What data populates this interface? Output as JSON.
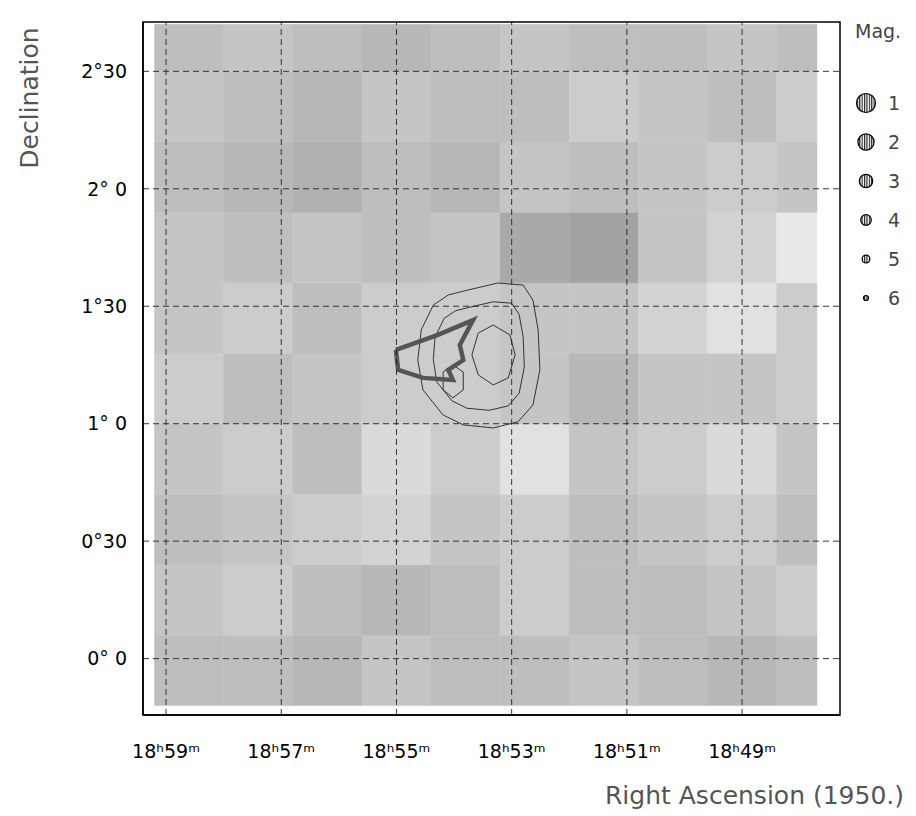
{
  "chart_data": {
    "type": "contour_map",
    "xlabel": "Right Ascension (1950.)",
    "ylabel": "Declination",
    "xlim": [
      1139.4,
      1127.3
    ],
    "ylim": [
      -0.24,
      2.71
    ],
    "xticks": [
      {
        "value": 1139,
        "label": "18ʰ59ᵐ"
      },
      {
        "value": 1137,
        "label": "18ʰ57ᵐ"
      },
      {
        "value": 1135,
        "label": "18ʰ55ᵐ"
      },
      {
        "value": 1133,
        "label": "18ʰ53ᵐ"
      },
      {
        "value": 1131,
        "label": "18ʰ51ᵐ"
      },
      {
        "value": 1129,
        "label": "18ʰ49ᵐ"
      }
    ],
    "yticks": [
      {
        "value": 0,
        "label": "0° 0"
      },
      {
        "value": 0.5,
        "label": "0°30"
      },
      {
        "value": 1,
        "label": "1° 0"
      },
      {
        "value": 1.5,
        "label": "1°30"
      },
      {
        "value": 2,
        "label": "2° 0"
      },
      {
        "value": 2.5,
        "label": "2°30"
      }
    ],
    "grid": true,
    "legend": "right",
    "magnitude_legend": {
      "title": "Mag.",
      "values": [
        1,
        2,
        3,
        4,
        5,
        6
      ]
    },
    "cells": {
      "x_edges": [
        1139.2,
        1138.0,
        1136.8,
        1135.6,
        1134.4,
        1133.2,
        1132.0,
        1130.8,
        1129.6,
        1128.4,
        1127.7
      ],
      "y_edges": [
        -0.2,
        0.1,
        0.4,
        0.7,
        1.0,
        1.3,
        1.6,
        1.9,
        2.2,
        2.5,
        2.7
      ],
      "values": [
        [
          0.5,
          0.5,
          0.45,
          0.55,
          0.5,
          0.5,
          0.55,
          0.5,
          0.45,
          0.5
        ],
        [
          0.55,
          0.6,
          0.5,
          0.45,
          0.5,
          0.6,
          0.5,
          0.5,
          0.55,
          0.6
        ],
        [
          0.5,
          0.55,
          0.6,
          0.65,
          0.55,
          0.6,
          0.5,
          0.55,
          0.6,
          0.5
        ],
        [
          0.55,
          0.6,
          0.5,
          0.7,
          0.6,
          0.75,
          0.55,
          0.6,
          0.7,
          0.55
        ],
        [
          0.6,
          0.5,
          0.55,
          0.6,
          0.6,
          0.55,
          0.45,
          0.55,
          0.55,
          0.6
        ],
        [
          0.55,
          0.6,
          0.5,
          0.6,
          0.6,
          0.55,
          0.55,
          0.65,
          0.75,
          0.6
        ],
        [
          0.55,
          0.5,
          0.55,
          0.5,
          0.55,
          0.35,
          0.3,
          0.55,
          0.65,
          0.8
        ],
        [
          0.5,
          0.45,
          0.4,
          0.5,
          0.45,
          0.55,
          0.5,
          0.55,
          0.6,
          0.55
        ],
        [
          0.55,
          0.5,
          0.45,
          0.55,
          0.5,
          0.5,
          0.6,
          0.55,
          0.5,
          0.6
        ],
        [
          0.5,
          0.55,
          0.5,
          0.45,
          0.5,
          0.55,
          0.5,
          0.5,
          0.55,
          0.5
        ]
      ]
    },
    "series": [
      {
        "color": "#222222",
        "line_style": "solid",
        "values": [
          [
            1133.76,
            1.569
          ],
          [
            1133.24,
            1.599
          ],
          [
            1132.8,
            1.59
          ],
          [
            1132.63,
            1.526
          ],
          [
            1132.54,
            1.399
          ],
          [
            1132.51,
            1.229
          ],
          [
            1132.63,
            1.08
          ],
          [
            1132.89,
            1.008
          ],
          [
            1133.32,
            0.982
          ],
          [
            1133.84,
            0.995
          ],
          [
            1134.19,
            1.037
          ],
          [
            1134.54,
            1.144
          ],
          [
            1134.63,
            1.271
          ],
          [
            1134.57,
            1.399
          ],
          [
            1134.36,
            1.505
          ],
          [
            1134.1,
            1.548
          ],
          [
            1133.76,
            1.569
          ]
        ]
      },
      {
        "color": "#222222",
        "line_style": "solid",
        "values": [
          [
            1133.71,
            1.497
          ],
          [
            1133.32,
            1.519
          ],
          [
            1133.0,
            1.513
          ],
          [
            1132.87,
            1.465
          ],
          [
            1132.8,
            1.369
          ],
          [
            1132.78,
            1.241
          ],
          [
            1132.87,
            1.13
          ],
          [
            1133.06,
            1.076
          ],
          [
            1133.39,
            1.057
          ],
          [
            1133.78,
            1.066
          ],
          [
            1134.04,
            1.098
          ],
          [
            1134.3,
            1.178
          ],
          [
            1134.36,
            1.273
          ],
          [
            1134.33,
            1.369
          ],
          [
            1134.17,
            1.449
          ],
          [
            1133.97,
            1.481
          ],
          [
            1133.71,
            1.497
          ]
        ]
      },
      {
        "color": "#222222",
        "line_style": "solid",
        "values": [
          [
            1133.32,
            1.42
          ],
          [
            1133.03,
            1.378
          ],
          [
            1132.94,
            1.293
          ],
          [
            1133.06,
            1.195
          ],
          [
            1133.32,
            1.165
          ],
          [
            1133.58,
            1.208
          ],
          [
            1133.69,
            1.293
          ],
          [
            1133.58,
            1.386
          ],
          [
            1133.32,
            1.42
          ]
        ]
      },
      {
        "color": "#222222",
        "line_style": "solid",
        "values": [
          [
            1134.02,
            1.25
          ],
          [
            1133.84,
            1.22
          ],
          [
            1133.84,
            1.144
          ],
          [
            1134.02,
            1.11
          ],
          [
            1134.19,
            1.144
          ],
          [
            1134.19,
            1.22
          ],
          [
            1134.02,
            1.25
          ]
        ]
      },
      {
        "color": "#555555",
        "line_style": "bold",
        "values": [
          [
            1135.01,
            1.314
          ],
          [
            1134.28,
            1.378
          ],
          [
            1133.67,
            1.441
          ],
          [
            1133.9,
            1.335
          ],
          [
            1133.84,
            1.271
          ],
          [
            1134.1,
            1.229
          ],
          [
            1134.02,
            1.186
          ],
          [
            1134.54,
            1.195
          ],
          [
            1134.97,
            1.229
          ],
          [
            1135.01,
            1.314
          ]
        ]
      }
    ]
  }
}
